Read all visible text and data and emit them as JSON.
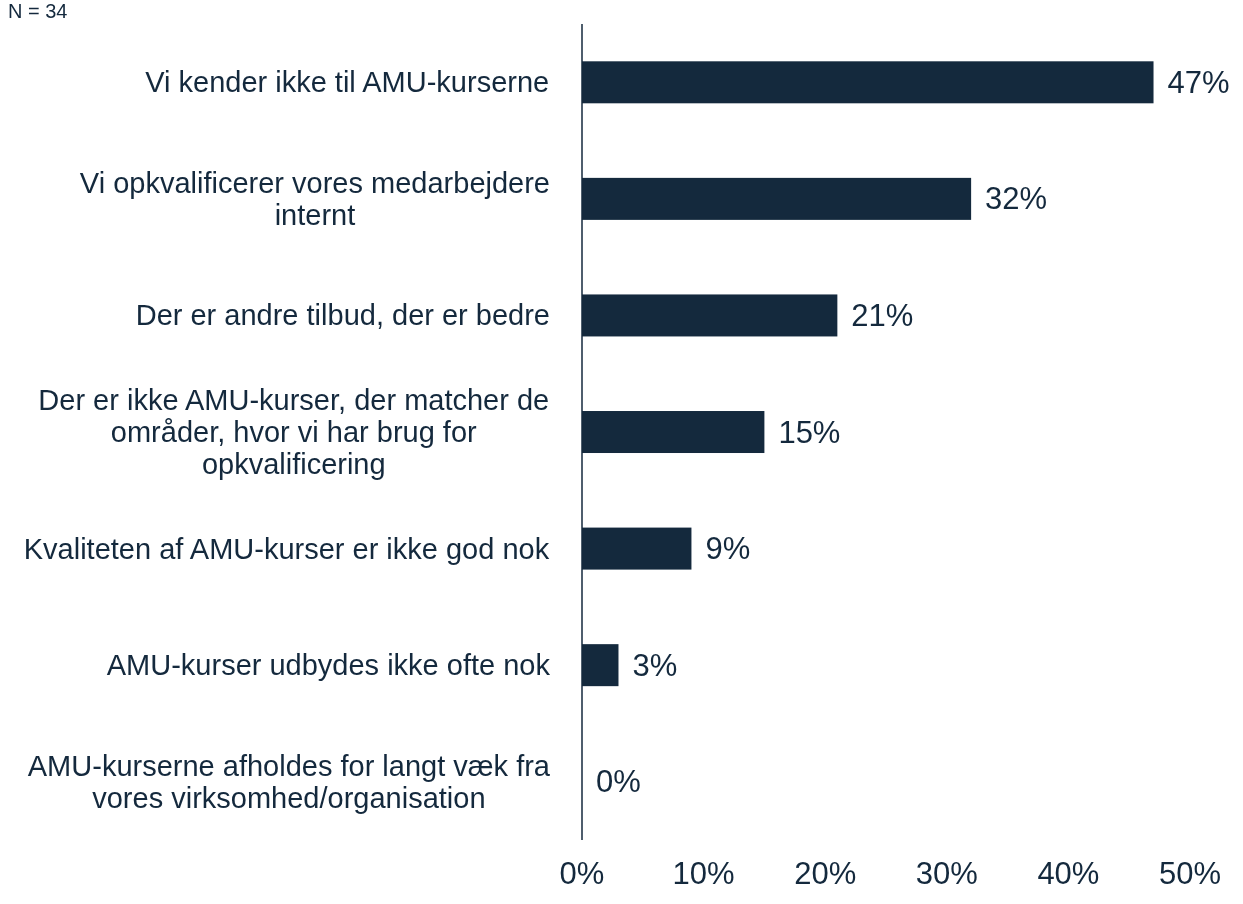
{
  "chart_data": {
    "type": "bar",
    "orientation": "horizontal",
    "annotations": [
      "N = 34"
    ],
    "categories": [
      "Vi kender ikke til AMU-kurserne",
      "Vi opkvalificerer vores medarbejdere internt",
      "Der er andre tilbud, der er bedre",
      "Der er ikke AMU-kurser, der matcher de områder, hvor vi har brug for opkvalificering",
      "Kvaliteten af AMU-kurser er ikke god nok",
      "AMU-kurser udbydes ikke ofte nok",
      "AMU-kurserne afholdes for langt væk fra vores virksomhed/organisation"
    ],
    "values": [
      47,
      32,
      21,
      15,
      9,
      3,
      0
    ],
    "value_labels": [
      "47%",
      "32%",
      "21%",
      "15%",
      "9%",
      "3%",
      "0%"
    ],
    "color": "#14293d",
    "xlim": [
      0,
      50
    ],
    "xticks": [
      {
        "value": 0,
        "label": "0%"
      },
      {
        "value": 10,
        "label": "10%"
      },
      {
        "value": 20,
        "label": "20%"
      },
      {
        "value": 30,
        "label": "30%"
      },
      {
        "value": 40,
        "label": "40%"
      },
      {
        "value": 50,
        "label": "50%"
      }
    ],
    "grid": false,
    "legend": false
  }
}
